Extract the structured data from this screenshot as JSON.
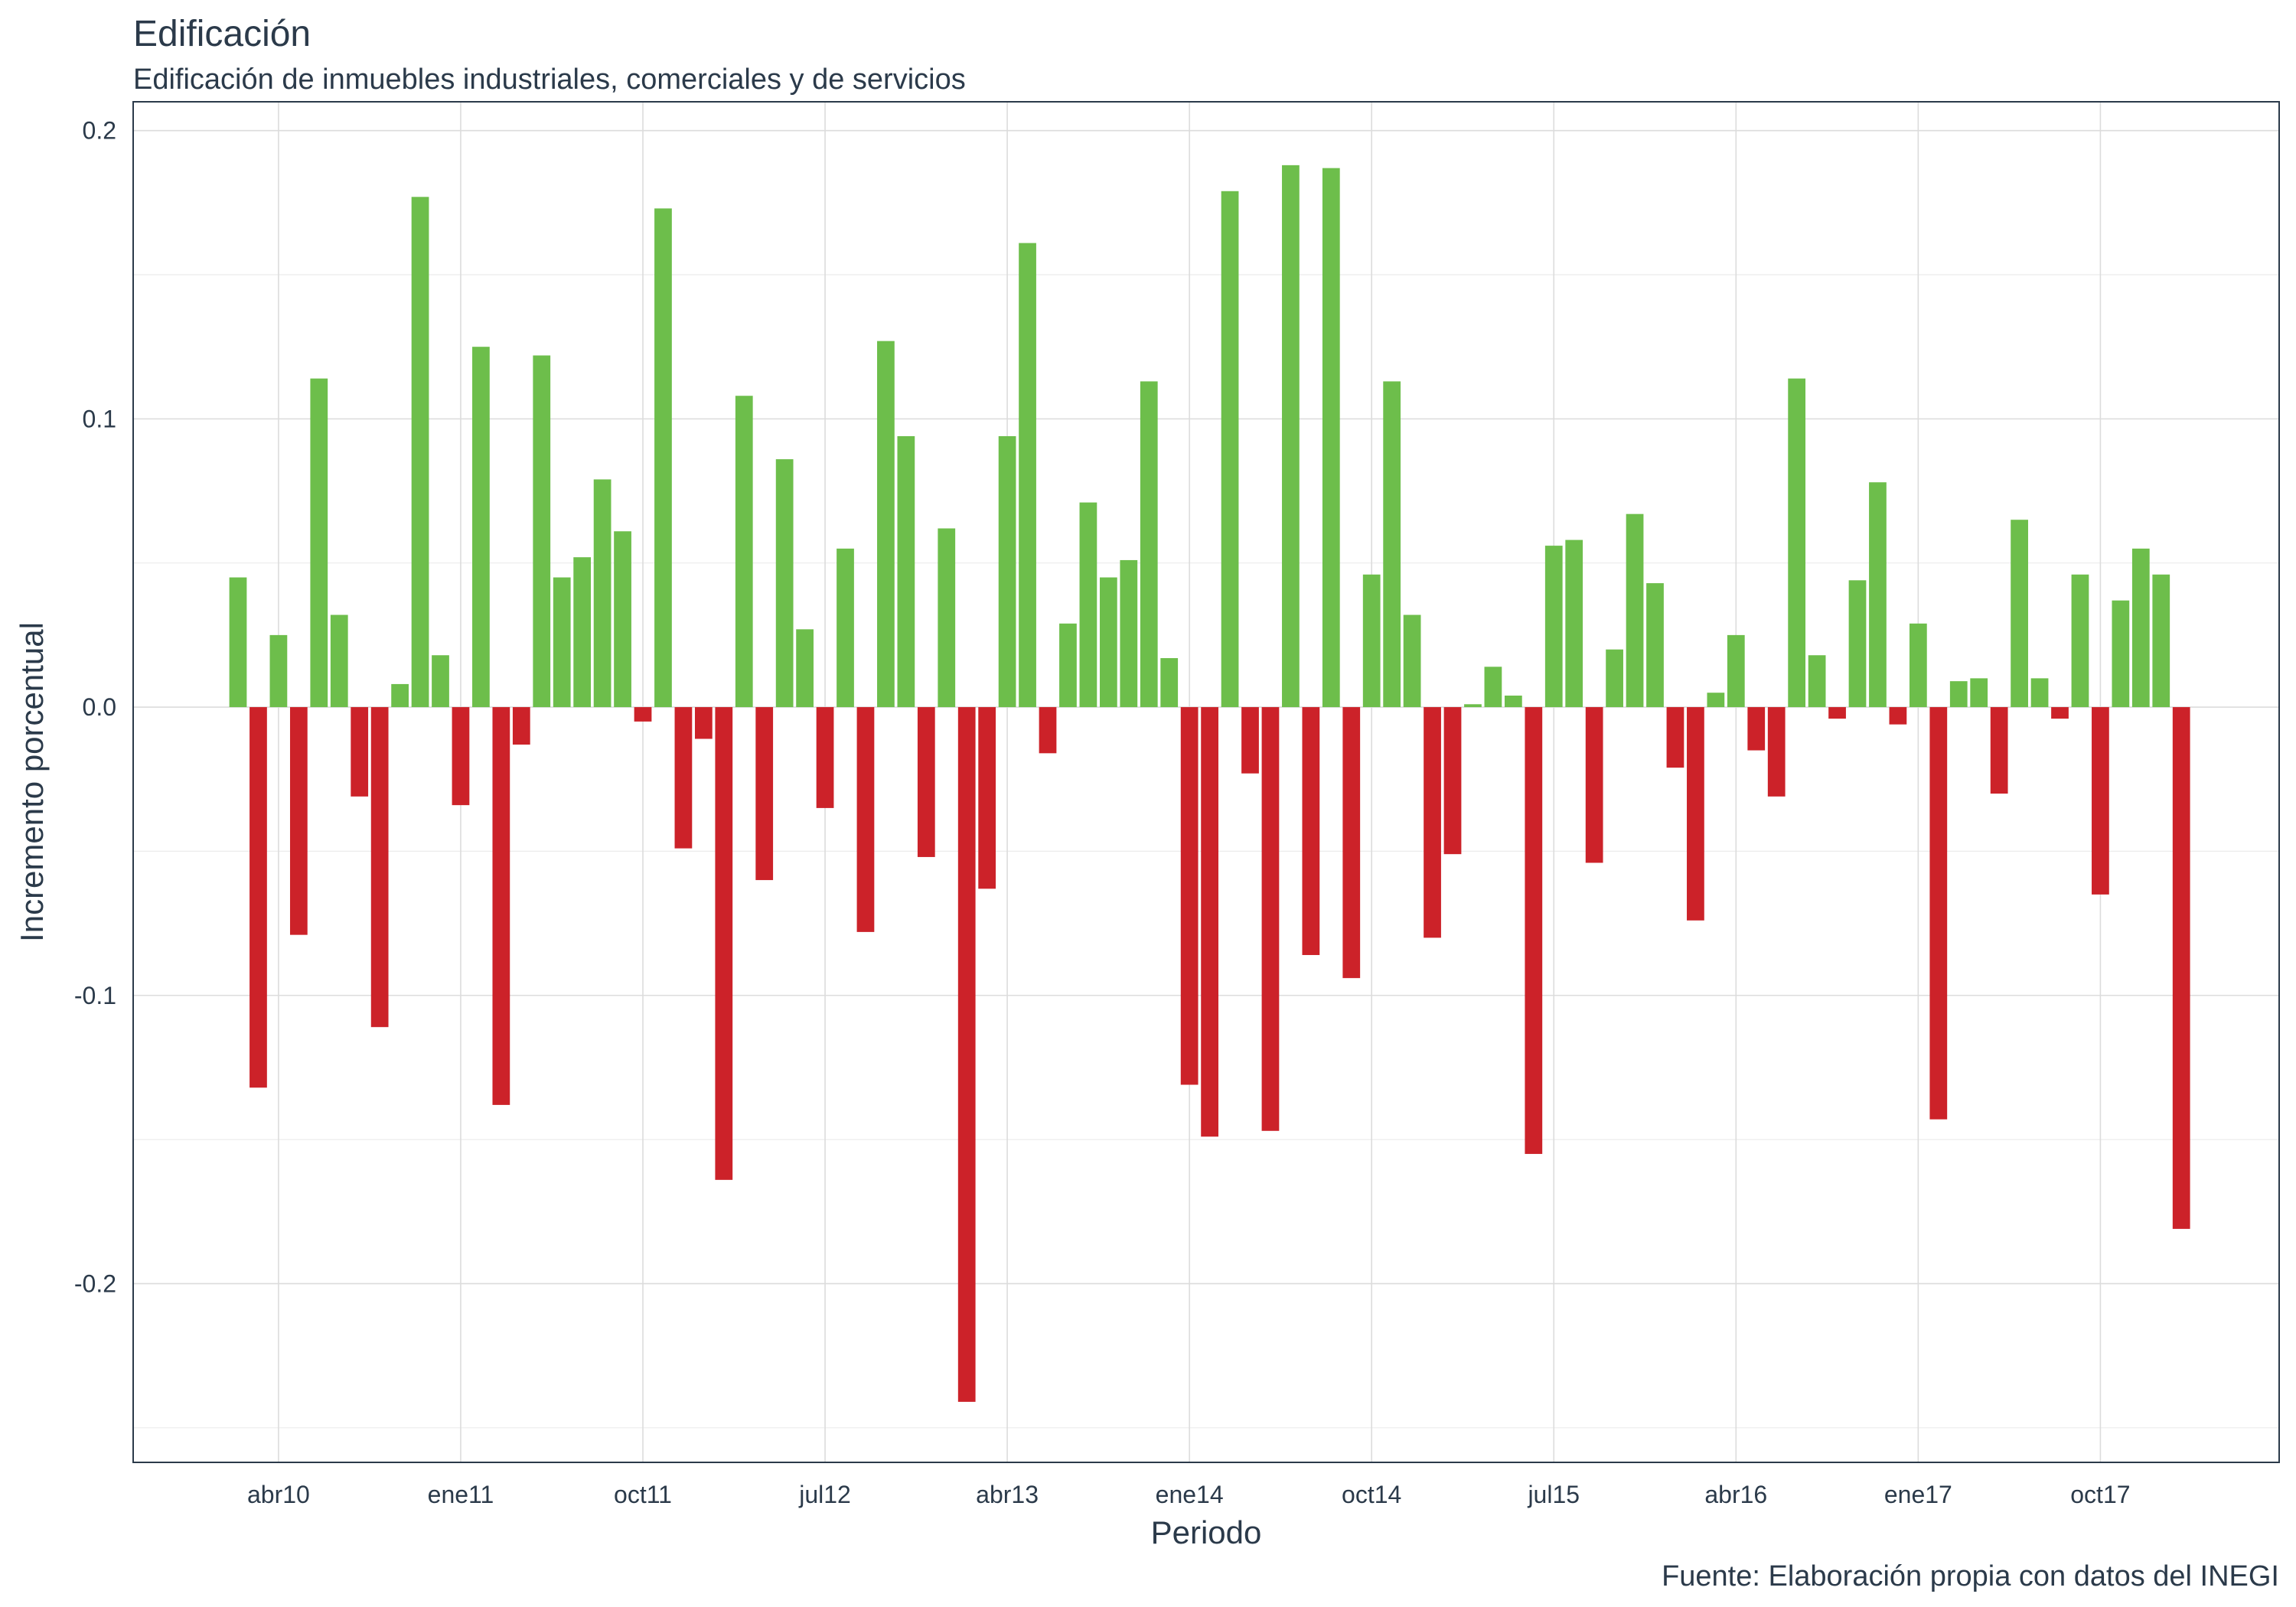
{
  "chart_data": {
    "type": "bar",
    "title": "Edificación",
    "subtitle": "Edificación de inmuebles industriales, comerciales y de servicios",
    "xlabel": "Periodo",
    "ylabel": "Incremento porcentual",
    "caption": "Fuente: Elaboración propia con datos del INEGI",
    "ylim": [
      -0.262,
      0.21
    ],
    "y_ticks": [
      0.2,
      0.1,
      0.0,
      -0.1,
      -0.2
    ],
    "y_tick_labels": [
      "0.2",
      "0.1",
      "0.0",
      "-0.1",
      "-0.2"
    ],
    "x_tick_labels": [
      "abr10",
      "ene11",
      "oct11",
      "jul12",
      "abr13",
      "ene14",
      "oct14",
      "jul15",
      "abr16",
      "ene17",
      "oct17"
    ],
    "x_tick_month_index": [
      3,
      12,
      21,
      30,
      39,
      48,
      57,
      66,
      75,
      84,
      93
    ],
    "first_period": "ene10",
    "grid": true,
    "legend": "none",
    "colors": {
      "positive": "#6dbe4b",
      "negative": "#cc2229"
    },
    "values": [
      0.045,
      -0.132,
      0.025,
      -0.079,
      0.114,
      0.032,
      -0.031,
      -0.111,
      0.008,
      0.177,
      0.018,
      -0.034,
      0.125,
      -0.138,
      -0.013,
      0.122,
      0.045,
      0.052,
      0.079,
      0.061,
      -0.005,
      0.173,
      -0.049,
      -0.011,
      -0.164,
      0.108,
      -0.06,
      0.086,
      0.027,
      -0.035,
      0.055,
      -0.078,
      0.127,
      0.094,
      -0.052,
      0.062,
      -0.241,
      -0.063,
      0.094,
      0.161,
      -0.016,
      0.029,
      0.071,
      0.045,
      0.051,
      0.113,
      0.017,
      -0.131,
      -0.149,
      0.179,
      -0.023,
      -0.147,
      0.188,
      -0.086,
      0.187,
      -0.094,
      0.046,
      0.113,
      0.032,
      -0.08,
      -0.051,
      0.001,
      0.014,
      0.004,
      -0.155,
      0.056,
      0.058,
      -0.054,
      0.02,
      0.067,
      0.043,
      -0.021,
      -0.074,
      0.005,
      0.025,
      -0.015,
      -0.031,
      0.114,
      0.018,
      -0.004,
      0.044,
      0.078,
      -0.006,
      0.029,
      -0.143,
      0.009,
      0.01,
      -0.03,
      0.065,
      0.01,
      -0.004,
      0.046,
      -0.065,
      0.037,
      0.055,
      0.046,
      -0.181
    ]
  }
}
